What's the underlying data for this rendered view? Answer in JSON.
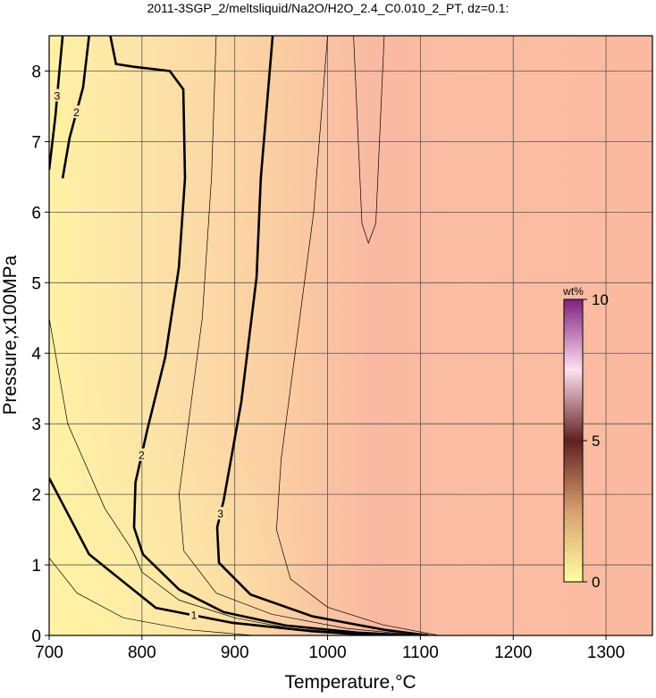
{
  "chart_data": {
    "type": "contour",
    "title": "2011-3SGP_2/meltsliquid/Na2O/H2O_2.4_C0.010_2_PT, dz=0.1:",
    "xlabel": "Temperature,°C",
    "ylabel": "Pressure,x100MPa",
    "xlim": [
      700,
      1350
    ],
    "ylim": [
      0,
      8.5
    ],
    "xticks": [
      700,
      800,
      900,
      1000,
      1100,
      1200,
      1300
    ],
    "yticks": [
      0,
      1,
      2,
      3,
      4,
      5,
      6,
      7,
      8
    ],
    "grid": true,
    "field_gradient": [
      {
        "x": 700,
        "color": "#fff2a4"
      },
      {
        "x": 800,
        "color": "#fde3a8"
      },
      {
        "x": 950,
        "color": "#fbcda2"
      },
      {
        "x": 1050,
        "color": "#f9b9a2"
      },
      {
        "x": 1150,
        "color": "#fbbda2"
      },
      {
        "x": 1350,
        "color": "#fbbaa0"
      }
    ],
    "contours": [
      {
        "level": 1,
        "style": "major",
        "x": [
          700,
          743,
          815,
          897,
          984,
          1051
        ],
        "y": [
          2.23,
          1.15,
          0.39,
          0.18,
          0.06,
          0
        ]
      },
      {
        "level": 2,
        "style": "major",
        "x": [
          765.5,
          772,
          791,
          830,
          844.5,
          846.4,
          839.7,
          825,
          806,
          793,
          791.5,
          801,
          840,
          888,
          955,
          1032,
          1090
        ],
        "y": [
          8.53,
          8.1,
          8.06,
          8.0,
          7.74,
          6.48,
          5.21,
          3.94,
          2.93,
          2.17,
          1.53,
          1.15,
          0.65,
          0.33,
          0.14,
          0.04,
          0
        ]
      },
      {
        "level": 2,
        "style": "major",
        "x": [
          714.5,
          722,
          736.6,
          743
        ],
        "y": [
          6.48,
          7.05,
          7.77,
          8.5
        ]
      },
      {
        "level": 3,
        "style": "major",
        "x": [
          941,
          936,
          928,
          923.5,
          907,
          888,
          881,
          883,
          917,
          984,
          1061,
          1109
        ],
        "y": [
          8.53,
          7.74,
          6.48,
          5.08,
          3.31,
          1.91,
          1.53,
          1.03,
          0.58,
          0.27,
          0.08,
          0
        ]
      },
      {
        "level": 3,
        "style": "major",
        "x": [
          700,
          706.7,
          710.6,
          714.5
        ],
        "y": [
          6.6,
          7.36,
          7.93,
          8.5
        ]
      },
      {
        "level": 0.5,
        "style": "minor",
        "x": [
          700,
          730,
          780,
          850,
          920
        ],
        "y": [
          1.1,
          0.6,
          0.25,
          0.08,
          0
        ]
      },
      {
        "level": 1.5,
        "style": "minor",
        "x": [
          700,
          720,
          760,
          790,
          800,
          840,
          900,
          960,
          1060
        ],
        "y": [
          4.5,
          3.0,
          1.8,
          1.2,
          0.9,
          0.5,
          0.25,
          0.1,
          0
        ]
      },
      {
        "level": 2.5,
        "style": "minor",
        "x": [
          880,
          875,
          865,
          850,
          840,
          845,
          880,
          940,
          1020,
          1100
        ],
        "y": [
          8.5,
          6.5,
          4.5,
          3,
          2,
          1.2,
          0.6,
          0.3,
          0.1,
          0
        ]
      },
      {
        "level": 3.2,
        "style": "minor",
        "x": [
          1000,
          985,
          965,
          950,
          945,
          960,
          1000,
          1060,
          1120
        ],
        "y": [
          8.5,
          6,
          4,
          2.5,
          1.5,
          0.8,
          0.4,
          0.15,
          0
        ]
      },
      {
        "level": 3.4,
        "style": "minor",
        "x": [
          1028,
          1037,
          1044,
          1052,
          1061
        ],
        "y": [
          8.5,
          5.84,
          5.56,
          5.84,
          8.5
        ]
      }
    ],
    "colorbar": {
      "label": "wt%",
      "lim": [
        0,
        10
      ],
      "ticks": [
        0,
        5,
        10
      ],
      "stops": [
        {
          "value": 0,
          "color": "#ffffa0"
        },
        {
          "value": 2.5,
          "color": "#d8a070"
        },
        {
          "value": 5,
          "color": "#602020"
        },
        {
          "value": 7.5,
          "color": "#ffe0f0"
        },
        {
          "value": 10,
          "color": "#802080"
        }
      ]
    }
  }
}
